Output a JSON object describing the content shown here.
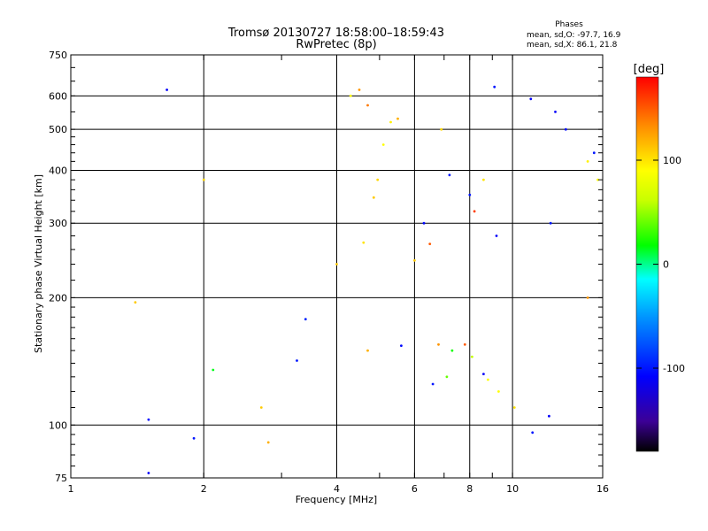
{
  "chart_data": {
    "type": "scatter",
    "title": "Tromsø 20130727 18:58:00–18:59:43",
    "subtitle": "RwPretec (8p)",
    "xlabel": "Frequency [MHz]",
    "ylabel": "Stationary phase Virtual Height [km]",
    "x_scale": "log",
    "y_scale": "log",
    "xlim": [
      1,
      16
    ],
    "ylim": [
      75,
      750
    ],
    "x_ticks": [
      1,
      2,
      4,
      6,
      8,
      10,
      16
    ],
    "y_ticks": [
      75,
      100,
      200,
      300,
      400,
      500,
      600,
      750
    ],
    "grid": true,
    "stats_heading": "Phases",
    "stats_lines": [
      "mean, sd,O: -97.7, 16.9",
      "mean, sd,X:  86.1, 21.8"
    ],
    "colorbar": {
      "label": "[deg]",
      "range": [
        -180,
        180
      ],
      "ticks": [
        -100,
        0,
        100
      ],
      "colors": [
        "#000000",
        "#3c0096",
        "#0000ff",
        "#0096ff",
        "#00ffff",
        "#00ff00",
        "#c8ff00",
        "#ffff00",
        "#ff8c00",
        "#ff0000"
      ]
    },
    "series": [
      {
        "points": [
          [
            3.25,
            142,
            -100
          ],
          [
            3.4,
            178,
            -95
          ],
          [
            4.0,
            240,
            110
          ],
          [
            4.7,
            150,
            120
          ],
          [
            5.6,
            154,
            -105
          ],
          [
            6.8,
            155,
            130
          ],
          [
            7.3,
            150,
            20
          ],
          [
            7.8,
            155,
            150
          ],
          [
            8.1,
            145,
            60
          ],
          [
            8.6,
            132,
            -110
          ],
          [
            8.8,
            128,
            90
          ],
          [
            7.1,
            130,
            40
          ],
          [
            6.6,
            125,
            -100
          ],
          [
            6.0,
            245,
            110
          ],
          [
            4.6,
            270,
            100
          ],
          [
            4.85,
            345,
            110
          ],
          [
            4.95,
            380,
            105
          ],
          [
            5.1,
            460,
            90
          ],
          [
            5.3,
            520,
            95
          ],
          [
            5.5,
            530,
            120
          ],
          [
            4.5,
            620,
            130
          ],
          [
            4.3,
            600,
            90
          ],
          [
            4.7,
            570,
            140
          ],
          [
            1.65,
            620,
            -110
          ],
          [
            9.1,
            630,
            -100
          ],
          [
            11.0,
            590,
            -110
          ],
          [
            12.5,
            550,
            -110
          ],
          [
            13.2,
            500,
            -105
          ],
          [
            14.8,
            420,
            95
          ],
          [
            15.3,
            440,
            -100
          ],
          [
            15.6,
            380,
            90
          ],
          [
            12.2,
            300,
            -100
          ],
          [
            14.8,
            200,
            130
          ],
          [
            1.4,
            195,
            110
          ],
          [
            2.0,
            380,
            105
          ],
          [
            2.1,
            135,
            15
          ],
          [
            1.9,
            93,
            -100
          ],
          [
            1.5,
            77,
            -110
          ],
          [
            1.5,
            103,
            -105
          ],
          [
            2.7,
            110,
            110
          ],
          [
            2.8,
            91,
            120
          ],
          [
            10.1,
            110,
            100
          ],
          [
            11.1,
            96,
            -100
          ],
          [
            12.1,
            105,
            -110
          ],
          [
            9.3,
            120,
            90
          ],
          [
            6.3,
            300,
            -105
          ],
          [
            6.5,
            268,
            150
          ],
          [
            9.2,
            280,
            -110
          ],
          [
            8.2,
            320,
            160
          ],
          [
            8.0,
            350,
            -100
          ],
          [
            8.6,
            380,
            100
          ],
          [
            6.9,
            500,
            105
          ],
          [
            7.2,
            390,
            -100
          ]
        ]
      }
    ]
  }
}
